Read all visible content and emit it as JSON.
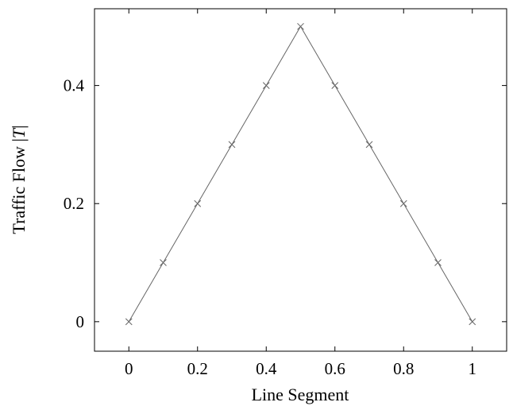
{
  "chart_data": {
    "type": "line",
    "title": "",
    "xlabel": "Line Segment",
    "ylabel_prefix": "Traffic Flow |",
    "ylabel_var": "T",
    "ylabel_suffix": "|",
    "xlim": [
      -0.1,
      1.1
    ],
    "ylim": [
      -0.05,
      0.53
    ],
    "xticks": [
      0,
      0.2,
      0.4,
      0.6,
      0.8,
      1
    ],
    "xtick_labels": [
      "0",
      "0.2",
      "0.4",
      "0.6",
      "0.8",
      "1"
    ],
    "yticks": [
      0,
      0.2,
      0.4
    ],
    "ytick_labels": [
      "0",
      "0.2",
      "0.4"
    ],
    "grid": false,
    "legend": "none",
    "series": [
      {
        "marker": "x",
        "color": "#666666",
        "x": [
          0,
          0.1,
          0.2,
          0.3,
          0.4,
          0.5,
          0.6,
          0.7,
          0.8,
          0.9,
          1.0
        ],
        "y": [
          0,
          0.1,
          0.2,
          0.3,
          0.4,
          0.5,
          0.4,
          0.3,
          0.2,
          0.1,
          0
        ]
      }
    ]
  }
}
